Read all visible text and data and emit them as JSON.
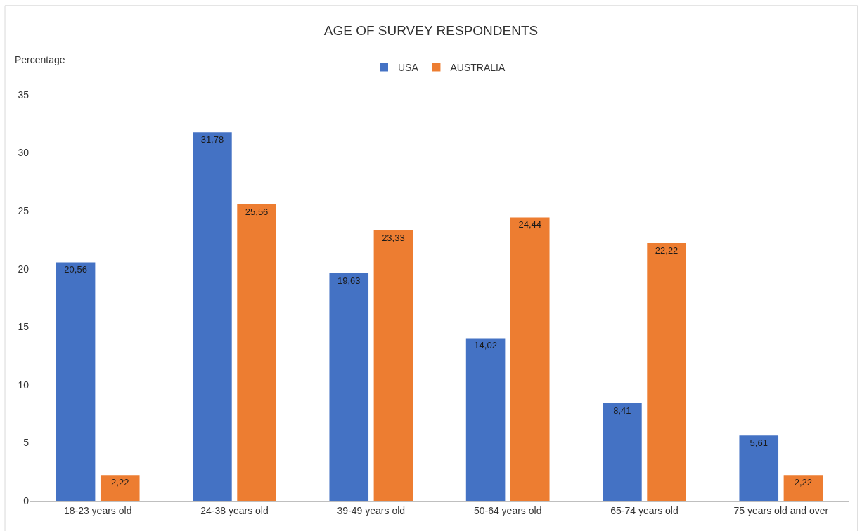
{
  "chart_data": {
    "type": "bar",
    "title": "AGE OF SURVEY RESPONDENTS",
    "ylabel": "Percentage",
    "categories": [
      "18-23 years old",
      "24-38 years old",
      "39-49 years old",
      "50-64 years old",
      "65-74 years old",
      "75 years old and over"
    ],
    "series": [
      {
        "name": "USA",
        "color": "#4472c4",
        "values": [
          20.56,
          31.78,
          19.63,
          14.02,
          8.41,
          5.61
        ],
        "value_labels": [
          "20,56",
          "31,78",
          "19,63",
          "14,02",
          "8,41",
          "5,61"
        ]
      },
      {
        "name": "AUSTRALIA",
        "color": "#ed7d31",
        "values": [
          2.22,
          25.56,
          23.33,
          24.44,
          22.22,
          2.22
        ],
        "value_labels": [
          "2,22",
          "25,56",
          "23,33",
          "24,44",
          "22,22",
          "2,22"
        ]
      }
    ],
    "ylim": [
      0,
      35
    ],
    "yticks": [
      0,
      5,
      10,
      15,
      20,
      25,
      30,
      35
    ],
    "grid": false,
    "legend": "top"
  }
}
